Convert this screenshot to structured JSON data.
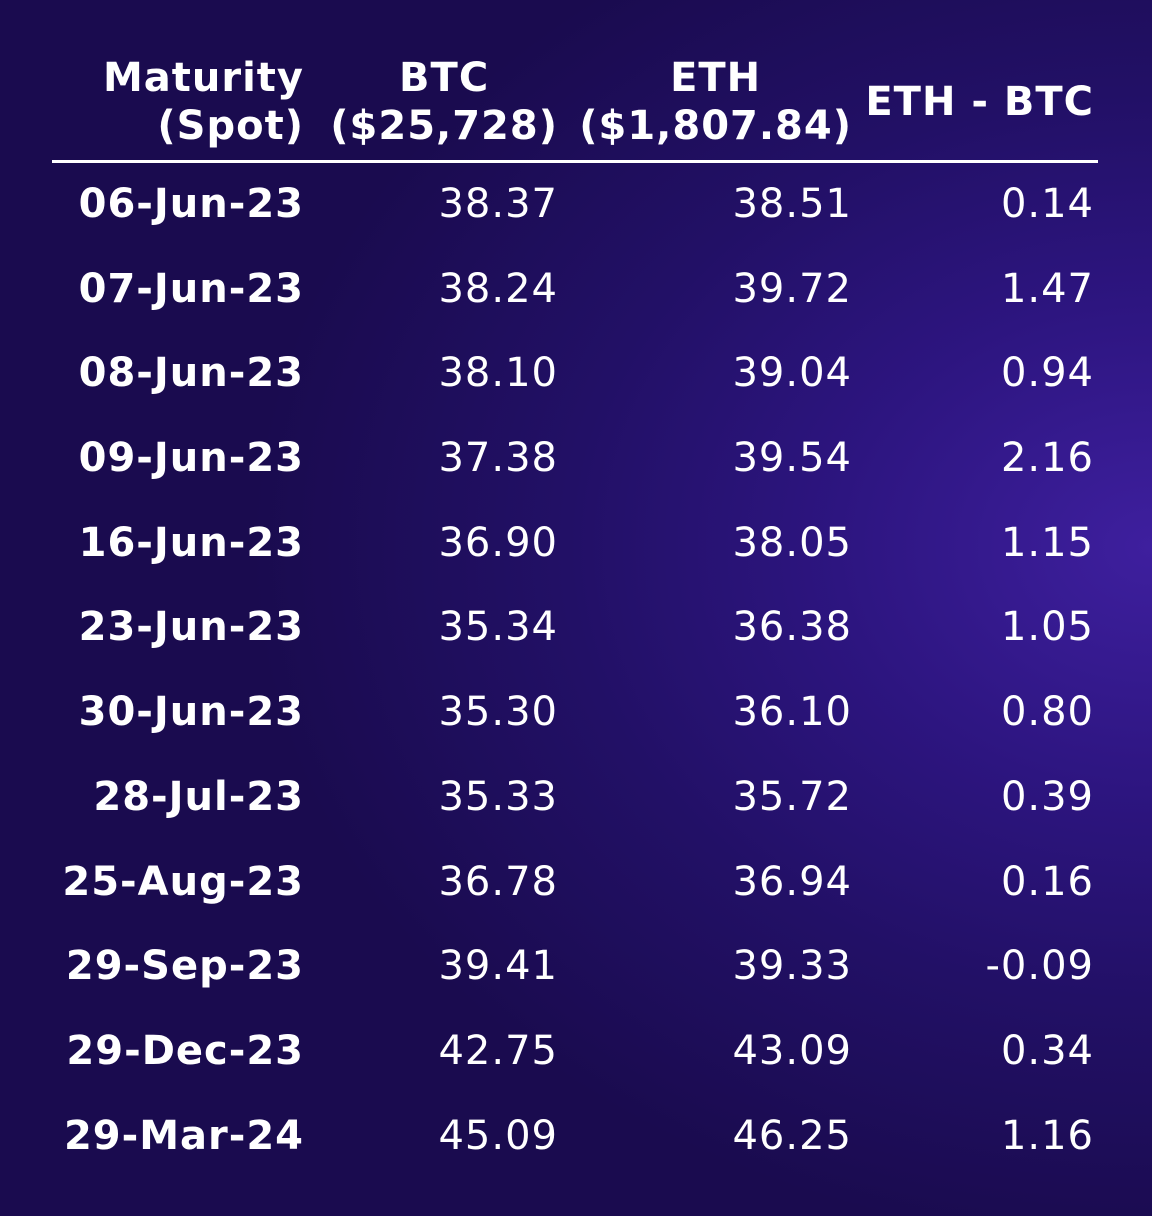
{
  "header": {
    "col0_line1": "Maturity",
    "col0_line2": "(Spot)",
    "col1_line1": "BTC",
    "col1_line2": "($25,728)",
    "col2_line1": "ETH",
    "col2_line2": "($1,807.84)",
    "col3": "ETH - BTC"
  },
  "chart_data": {
    "type": "table",
    "columns": [
      "Maturity (Spot)",
      "BTC ($25,728)",
      "ETH ($1,807.84)",
      "ETH - BTC"
    ],
    "rows": [
      {
        "maturity": "06-Jun-23",
        "btc": "38.37",
        "eth": "38.51",
        "diff": "0.14"
      },
      {
        "maturity": "07-Jun-23",
        "btc": "38.24",
        "eth": "39.72",
        "diff": "1.47"
      },
      {
        "maturity": "08-Jun-23",
        "btc": "38.10",
        "eth": "39.04",
        "diff": "0.94"
      },
      {
        "maturity": "09-Jun-23",
        "btc": "37.38",
        "eth": "39.54",
        "diff": "2.16"
      },
      {
        "maturity": "16-Jun-23",
        "btc": "36.90",
        "eth": "38.05",
        "diff": "1.15"
      },
      {
        "maturity": "23-Jun-23",
        "btc": "35.34",
        "eth": "36.38",
        "diff": "1.05"
      },
      {
        "maturity": "30-Jun-23",
        "btc": "35.30",
        "eth": "36.10",
        "diff": "0.80"
      },
      {
        "maturity": "28-Jul-23",
        "btc": "35.33",
        "eth": "35.72",
        "diff": "0.39"
      },
      {
        "maturity": "25-Aug-23",
        "btc": "36.78",
        "eth": "36.94",
        "diff": "0.16"
      },
      {
        "maturity": "29-Sep-23",
        "btc": "39.41",
        "eth": "39.33",
        "diff": "-0.09"
      },
      {
        "maturity": "29-Dec-23",
        "btc": "42.75",
        "eth": "43.09",
        "diff": "0.34"
      },
      {
        "maturity": "29-Mar-24",
        "btc": "45.09",
        "eth": "46.25",
        "diff": "1.16"
      }
    ]
  },
  "colors": {
    "background_dark": "#1a0b4f",
    "background_light": "#3e1f9e",
    "text": "#ffffff"
  }
}
